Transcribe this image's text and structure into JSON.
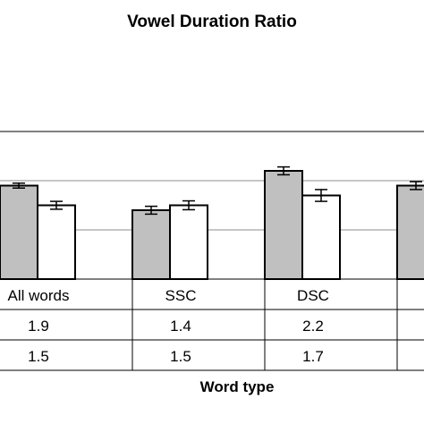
{
  "chart_data": {
    "type": "bar",
    "title": "Vowel Duration Ratio",
    "xlabel": "Word type",
    "ylabel": "",
    "ylim": [
      0,
      3
    ],
    "grid": true,
    "categories": [
      "All words",
      "SSC",
      "DSC",
      ""
    ],
    "series": [
      {
        "name": "",
        "color": "#c0c0c0",
        "values": [
          1.9,
          1.4,
          2.2,
          1.9
        ],
        "bar_values": [
          1.9,
          1.4,
          2.2,
          1.9
        ],
        "errors": [
          0.05,
          0.08,
          0.08,
          0.08
        ]
      },
      {
        "name": "",
        "color": "#ffffff",
        "values": [
          1.5,
          1.5,
          1.7,
          null
        ],
        "bar_values": [
          1.5,
          1.5,
          1.7,
          null
        ],
        "errors": [
          0.08,
          0.09,
          0.12,
          null
        ]
      }
    ],
    "table": {
      "header": [
        "All words",
        "SSC",
        "DSC",
        ""
      ],
      "rows": [
        [
          "1.9",
          "1.4",
          "2.2",
          ""
        ],
        [
          "1.5",
          "1.5",
          "1.7",
          ""
        ]
      ]
    }
  }
}
